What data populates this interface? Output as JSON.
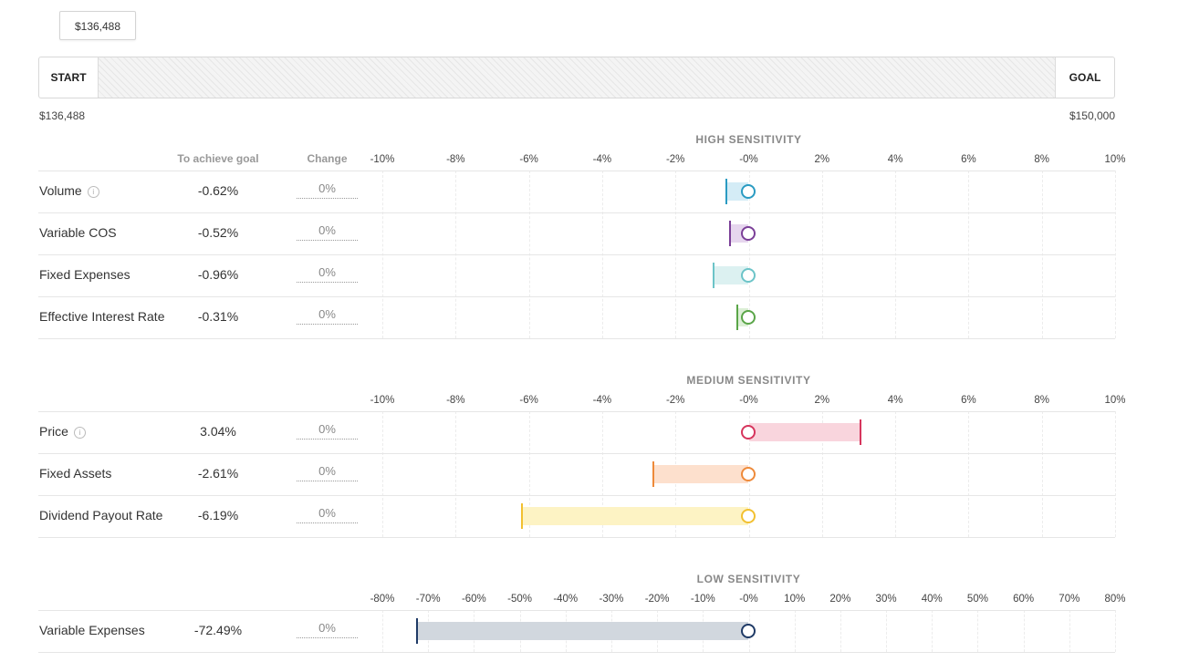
{
  "header": {
    "tooltip_value": "$136,488",
    "start_label": "START",
    "goal_label": "GOAL",
    "start_value": "$136,488",
    "goal_value": "$150,000",
    "progress_fraction": 0.0
  },
  "columns": {
    "to_achieve_goal": "To achieve goal",
    "change": "Change"
  },
  "chart_data": [
    {
      "type": "bar",
      "title": "HIGH SENSITIVITY",
      "xlim": [
        -10,
        10
      ],
      "ticks": [
        -10,
        -8,
        -6,
        -4,
        -2,
        0,
        2,
        4,
        6,
        8,
        10
      ],
      "tick_labels": [
        "-10%",
        "-8%",
        "-6%",
        "-4%",
        "-2%",
        "-0%",
        "2%",
        "4%",
        "6%",
        "8%",
        "10%"
      ],
      "rows": [
        {
          "label": "Volume",
          "info": true,
          "goal_text": "-0.62%",
          "value": -0.62,
          "change": "0%",
          "color": "#2a9bc2",
          "fill": "#d4ecf6"
        },
        {
          "label": "Variable COS",
          "info": false,
          "goal_text": "-0.52%",
          "value": -0.52,
          "change": "0%",
          "color": "#7b3f98",
          "fill": "#e6d6ee"
        },
        {
          "label": "Fixed Expenses",
          "info": false,
          "goal_text": "-0.96%",
          "value": -0.96,
          "change": "0%",
          "color": "#6cc4c8",
          "fill": "#dcf1f1"
        },
        {
          "label": "Effective Interest Rate",
          "info": false,
          "goal_text": "-0.31%",
          "value": -0.31,
          "change": "0%",
          "color": "#5aa548",
          "fill": "#dcefd6"
        }
      ]
    },
    {
      "type": "bar",
      "title": "MEDIUM SENSITIVITY",
      "xlim": [
        -10,
        10
      ],
      "ticks": [
        -10,
        -8,
        -6,
        -4,
        -2,
        0,
        2,
        4,
        6,
        8,
        10
      ],
      "tick_labels": [
        "-10%",
        "-8%",
        "-6%",
        "-4%",
        "-2%",
        "-0%",
        "2%",
        "4%",
        "6%",
        "8%",
        "10%"
      ],
      "rows": [
        {
          "label": "Price",
          "info": true,
          "goal_text": "3.04%",
          "value": 3.04,
          "change": "0%",
          "color": "#d6355d",
          "fill": "#f9d5dd"
        },
        {
          "label": "Fixed Assets",
          "info": false,
          "goal_text": "-2.61%",
          "value": -2.61,
          "change": "0%",
          "color": "#ee8a3a",
          "fill": "#fde0cd"
        },
        {
          "label": "Dividend Payout Rate",
          "info": false,
          "goal_text": "-6.19%",
          "value": -6.19,
          "change": "0%",
          "color": "#f2c030",
          "fill": "#fdf3c4"
        }
      ]
    },
    {
      "type": "bar",
      "title": "LOW SENSITIVITY",
      "xlim": [
        -80,
        80
      ],
      "ticks": [
        -80,
        -70,
        -60,
        -50,
        -40,
        -30,
        -20,
        -10,
        0,
        10,
        20,
        30,
        40,
        50,
        60,
        70,
        80
      ],
      "tick_labels": [
        "-80%",
        "-70%",
        "-60%",
        "-50%",
        "-40%",
        "-30%",
        "-20%",
        "-10%",
        "-0%",
        "10%",
        "20%",
        "30%",
        "40%",
        "50%",
        "60%",
        "70%",
        "80%"
      ],
      "rows": [
        {
          "label": "Variable Expenses",
          "info": false,
          "goal_text": "-72.49%",
          "value": -72.49,
          "change": "0%",
          "color": "#1f3a66",
          "fill": "#d1d7de"
        }
      ]
    }
  ]
}
